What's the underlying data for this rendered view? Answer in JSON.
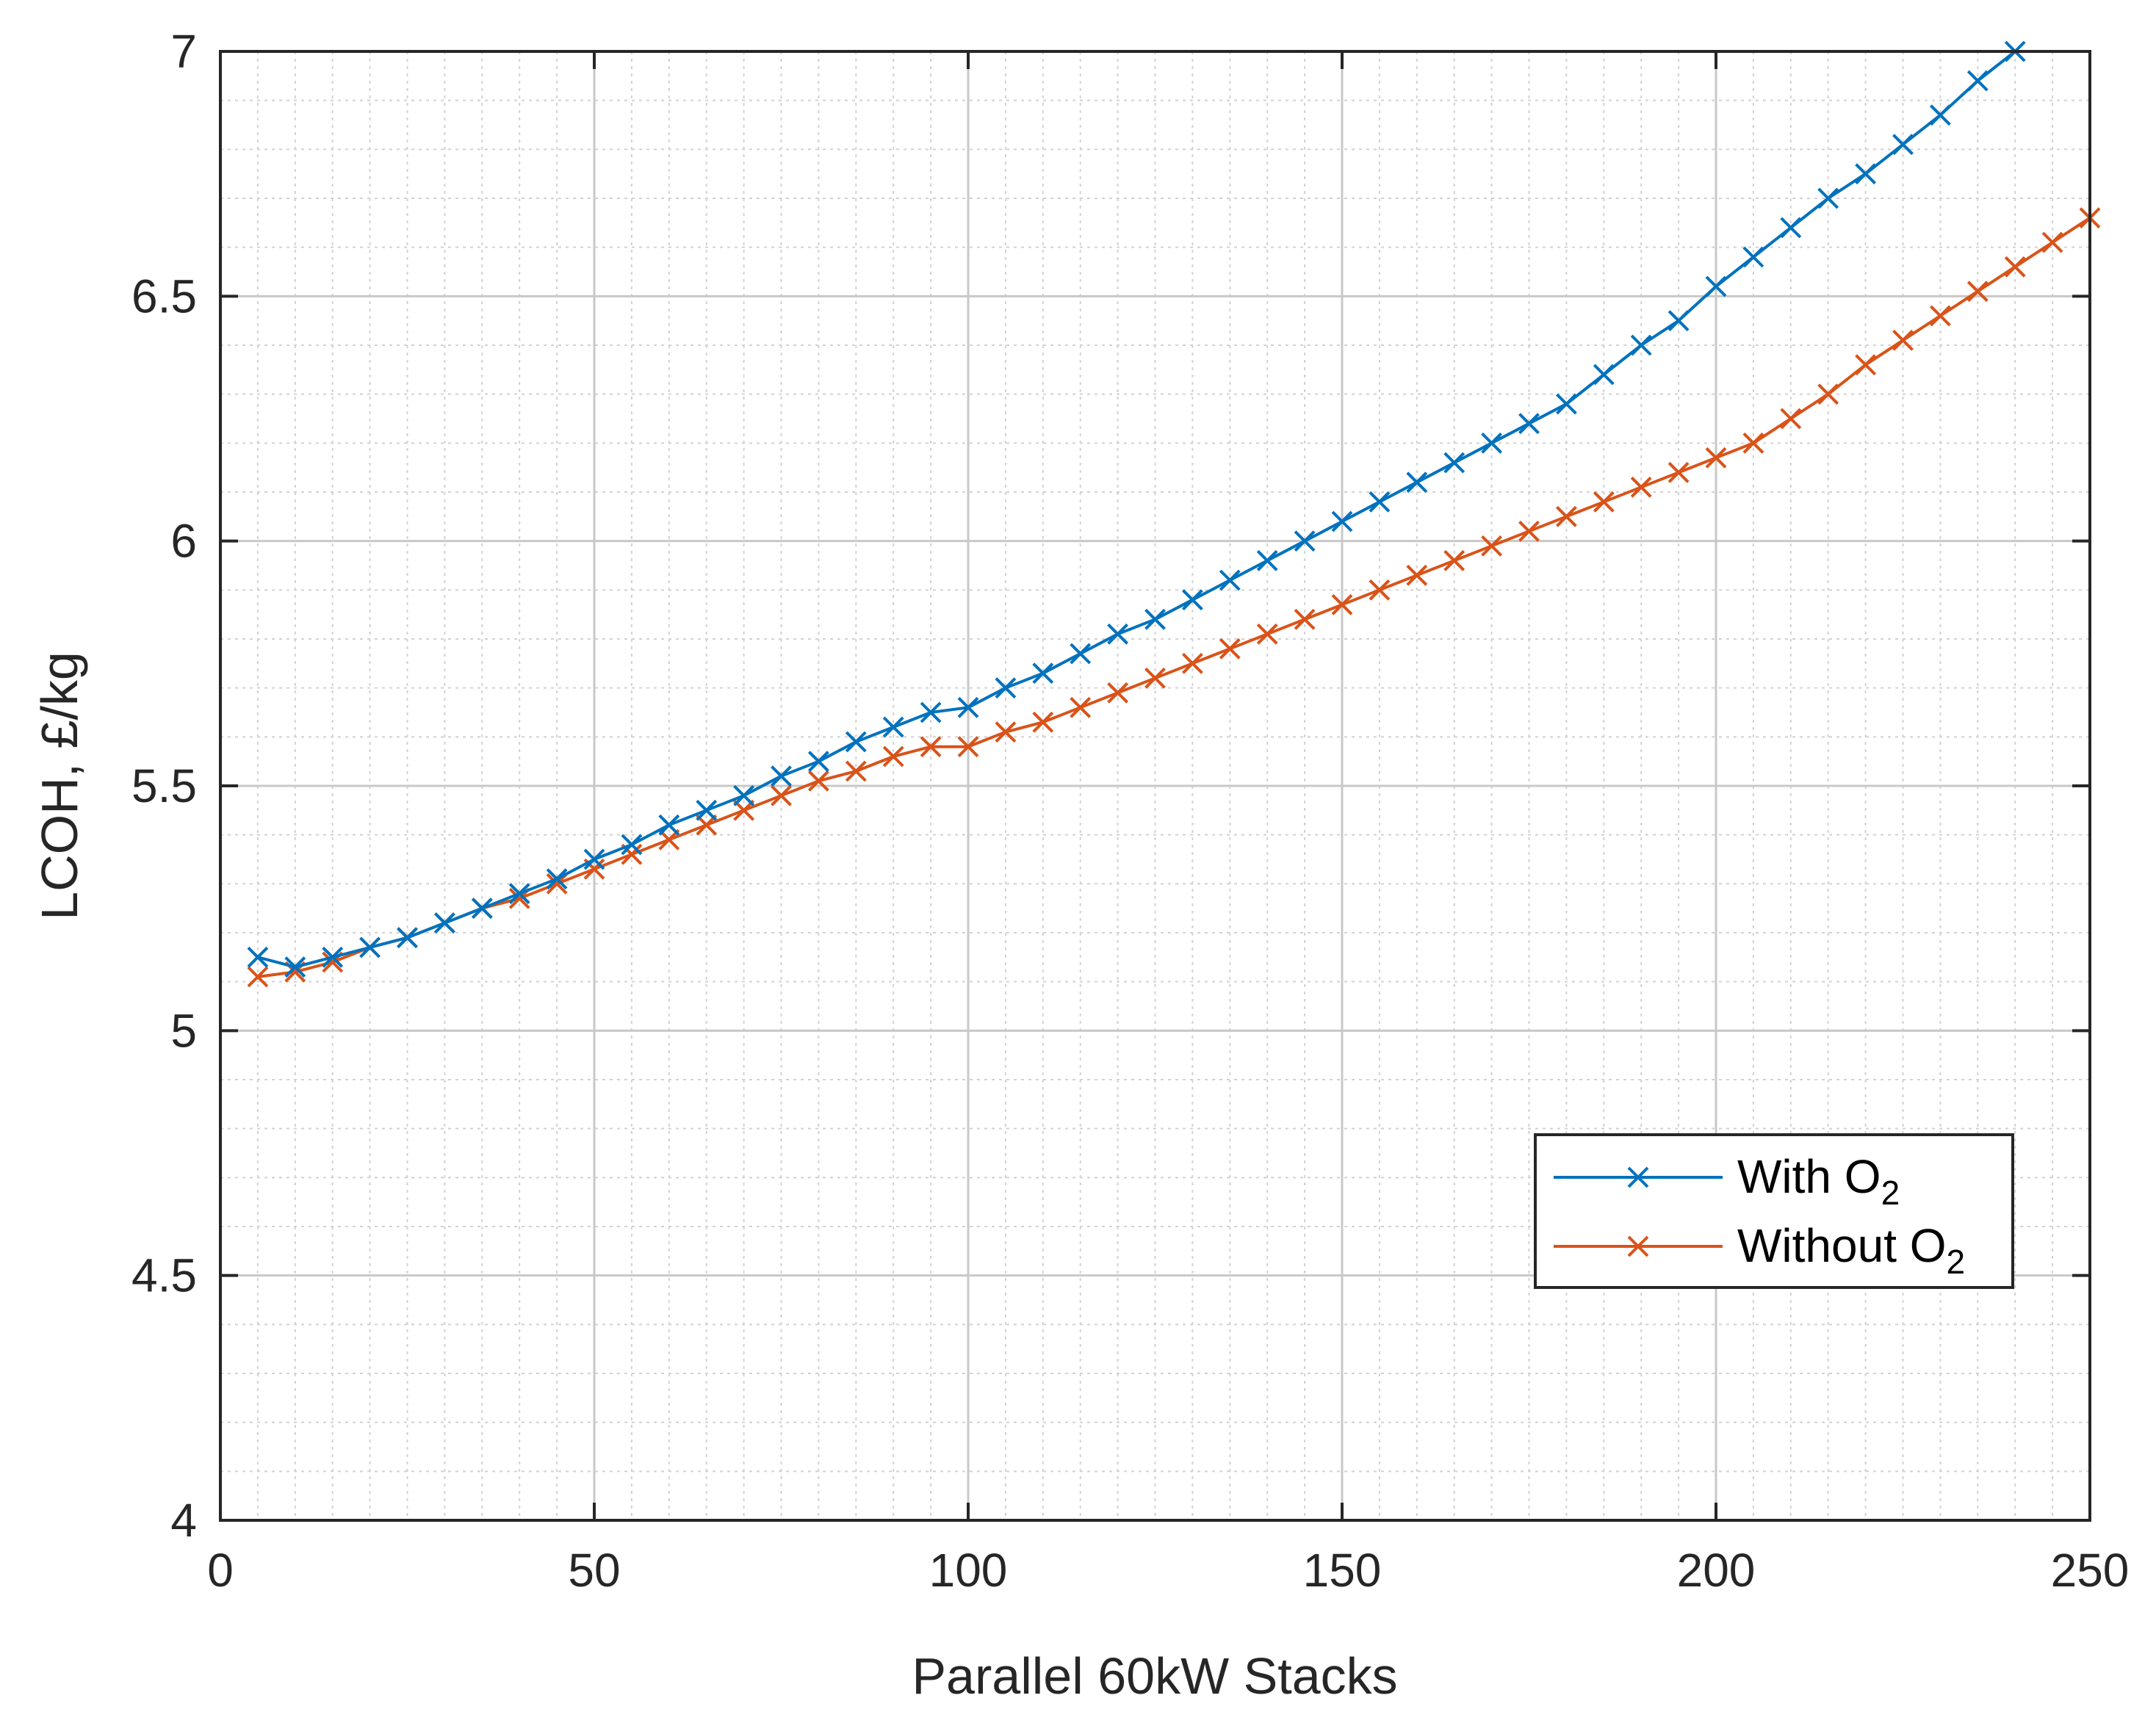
{
  "chart_data": {
    "type": "line",
    "title": "",
    "xlabel": "Parallel 60kW Stacks",
    "ylabel": "LCOH, £/kg",
    "xlim": [
      0,
      250
    ],
    "ylim": [
      4,
      7
    ],
    "grid": true,
    "minor_grid": true,
    "x_ticks": [
      0,
      50,
      100,
      150,
      200,
      250
    ],
    "x_tick_labels": [
      "0",
      "50",
      "100",
      "150",
      "200",
      "250"
    ],
    "y_ticks": [
      4,
      4.5,
      5,
      5.5,
      6,
      6.5,
      7
    ],
    "y_tick_labels": [
      "4",
      "4.5",
      "5",
      "5.5",
      "6",
      "6.5",
      "7"
    ],
    "legend_position": "bottom-right",
    "marker": "x",
    "series": [
      {
        "name": "With O2",
        "legend_main": "With O",
        "legend_sub": "2",
        "color": "#0072BD",
        "x": [
          5,
          10,
          15,
          20,
          25,
          30,
          35,
          40,
          45,
          50,
          55,
          60,
          65,
          70,
          75,
          80,
          85,
          90,
          95,
          100,
          105,
          110,
          115,
          120,
          125,
          130,
          135,
          140,
          145,
          150,
          155,
          160,
          165,
          170,
          175,
          180,
          185,
          190,
          195,
          200,
          205,
          210,
          215,
          220,
          225,
          230,
          235,
          240
        ],
        "y": [
          5.15,
          5.13,
          5.15,
          5.17,
          5.19,
          5.22,
          5.25,
          5.28,
          5.31,
          5.35,
          5.38,
          5.42,
          5.45,
          5.48,
          5.52,
          5.55,
          5.59,
          5.62,
          5.65,
          5.66,
          5.7,
          5.73,
          5.77,
          5.81,
          5.84,
          5.88,
          5.92,
          5.96,
          6.0,
          6.04,
          6.08,
          6.12,
          6.16,
          6.2,
          6.24,
          6.28,
          6.34,
          6.4,
          6.45,
          6.52,
          6.58,
          6.64,
          6.7,
          6.75,
          6.81,
          6.87,
          6.94,
          7.0
        ]
      },
      {
        "name": "Without O2",
        "legend_main": "Without O",
        "legend_sub": "2",
        "color": "#D95319",
        "x": [
          5,
          10,
          15,
          20,
          25,
          30,
          35,
          40,
          45,
          50,
          55,
          60,
          65,
          70,
          75,
          80,
          85,
          90,
          95,
          100,
          105,
          110,
          115,
          120,
          125,
          130,
          135,
          140,
          145,
          150,
          155,
          160,
          165,
          170,
          175,
          180,
          185,
          190,
          195,
          200,
          205,
          210,
          215,
          220,
          225,
          230,
          235,
          240,
          245,
          250
        ],
        "y": [
          5.11,
          5.12,
          5.14,
          5.17,
          5.19,
          5.22,
          5.25,
          5.27,
          5.3,
          5.33,
          5.36,
          5.39,
          5.42,
          5.45,
          5.48,
          5.51,
          5.53,
          5.56,
          5.58,
          5.58,
          5.61,
          5.63,
          5.66,
          5.69,
          5.72,
          5.75,
          5.78,
          5.81,
          5.84,
          5.87,
          5.9,
          5.93,
          5.96,
          5.99,
          6.02,
          6.05,
          6.08,
          6.11,
          6.14,
          6.17,
          6.2,
          6.25,
          6.3,
          6.36,
          6.41,
          6.46,
          6.51,
          6.56,
          6.61,
          6.66
        ]
      }
    ]
  }
}
